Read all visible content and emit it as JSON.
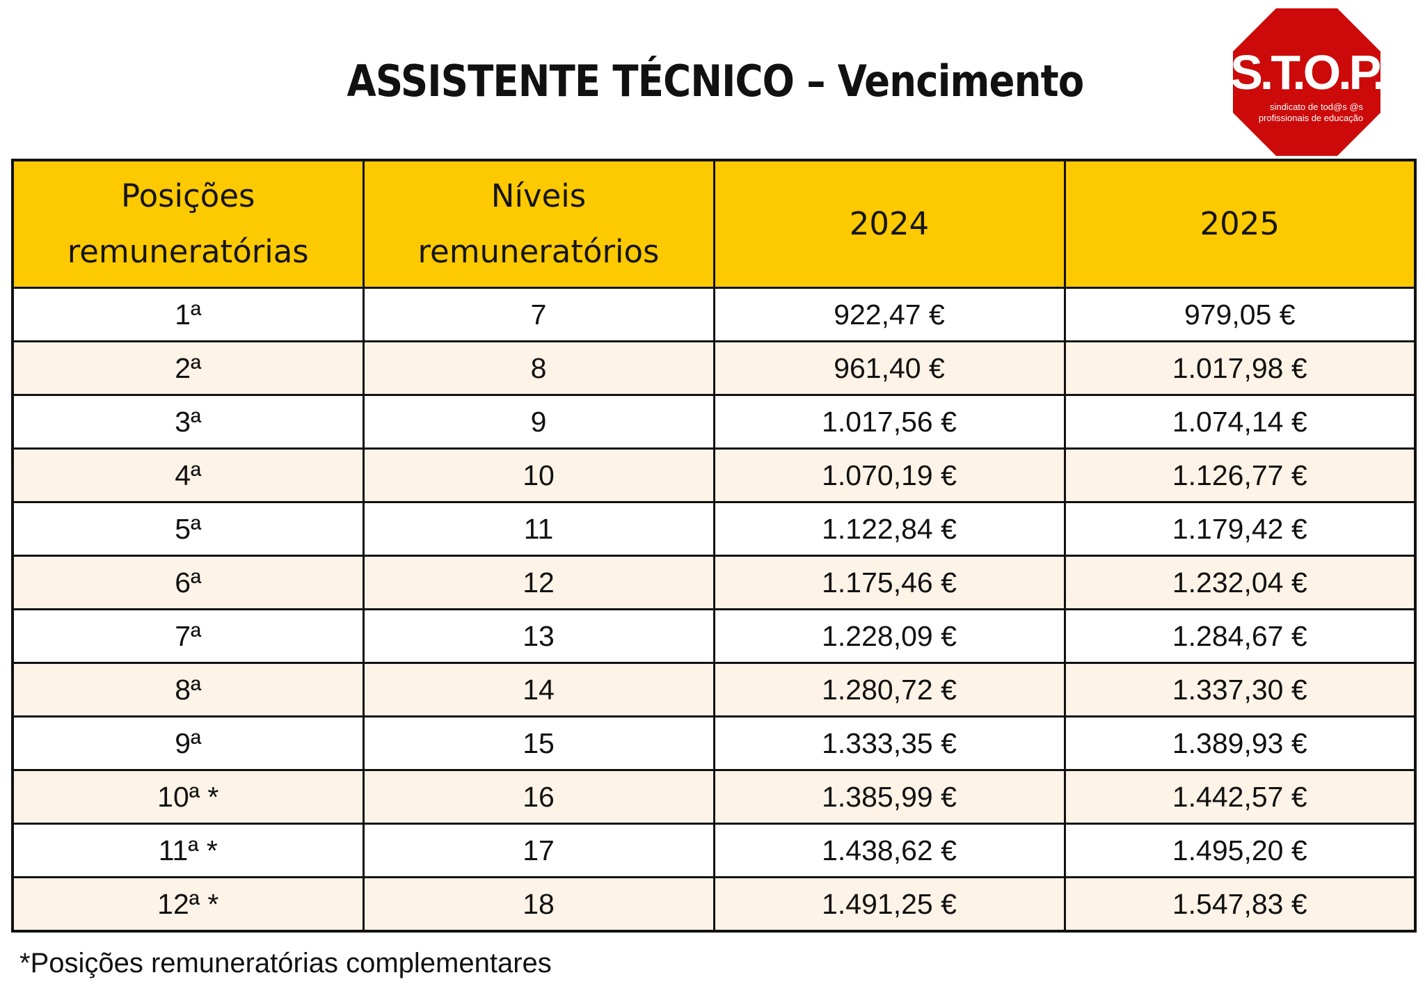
{
  "title": "ASSISTENTE TÉCNICO – Vencimento",
  "logo": {
    "name": "S.T.O.P.",
    "tagline_line1": "sindicato de tod@s @s",
    "tagline_line2": "profissionais de educação",
    "color": "#cc0a0a"
  },
  "table": {
    "headers": [
      [
        "Posições",
        "remuneratórias"
      ],
      [
        "Níveis",
        "remuneratórios"
      ],
      [
        "2024"
      ],
      [
        "2025"
      ]
    ],
    "rows": [
      [
        "1ª",
        "7",
        "922,47 €",
        "979,05 €"
      ],
      [
        "2ª",
        "8",
        "961,40 €",
        "1.017,98 €"
      ],
      [
        "3ª",
        "9",
        "1.017,56 €",
        "1.074,14 €"
      ],
      [
        "4ª",
        "10",
        "1.070,19 €",
        "1.126,77 €"
      ],
      [
        "5ª",
        "11",
        "1.122,84 €",
        "1.179,42 €"
      ],
      [
        "6ª",
        "12",
        "1.175,46 €",
        "1.232,04 €"
      ],
      [
        "7ª",
        "13",
        "1.228,09 €",
        "1.284,67 €"
      ],
      [
        "8ª",
        "14",
        "1.280,72 €",
        "1.337,30 €"
      ],
      [
        "9ª",
        "15",
        "1.333,35 €",
        "1.389,93 €"
      ],
      [
        "10ª *",
        "16",
        "1.385,99 €",
        "1.442,57 €"
      ],
      [
        "11ª *",
        "17",
        "1.438,62 €",
        "1.495,20 €"
      ],
      [
        "12ª *",
        "18",
        "1.491,25 €",
        "1.547,83 €"
      ]
    ]
  },
  "footnote": "*Posições remuneratórias complementares",
  "colors": {
    "header_bg": "#fdc900",
    "row_alt_bg": "#fdf3e7",
    "border": "#111111"
  }
}
